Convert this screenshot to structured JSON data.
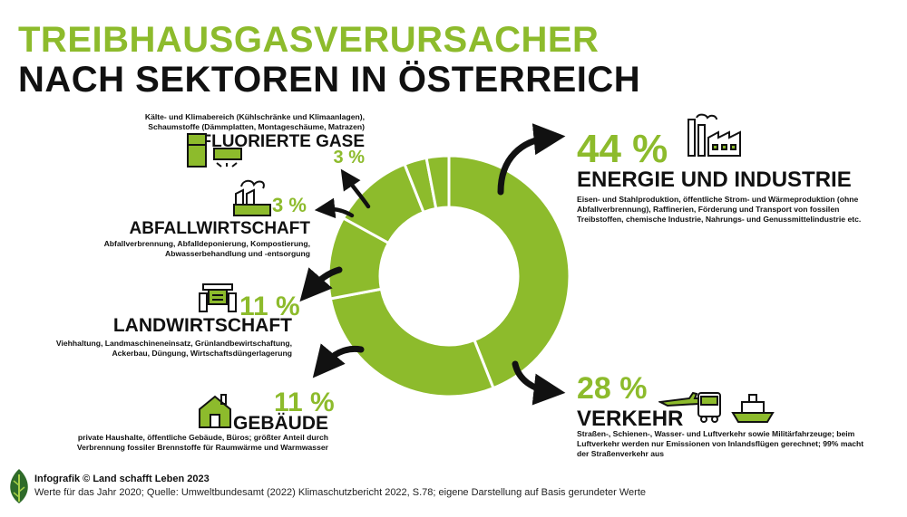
{
  "title_line1": "TREIBHAUSGASVERURSACHER",
  "title_line2": "NACH SEKTOREN IN ÖSTERREICH",
  "colors": {
    "accent": "#8dbb2c",
    "text": "#111111"
  },
  "sectors": {
    "energie": {
      "percent": "44 %",
      "name": "ENERGIE UND INDUSTRIE",
      "desc": "Eisen- und Stahlproduktion, öffentliche Strom- und Wärmeproduktion (ohne Abfallverbrennung), Raffinerien, Förderung und Transport von fossilen Treibstoffen, chemische Industrie, Nahrungs- und Genussmittelindustrie etc.",
      "icon": "factory-icon"
    },
    "verkehr": {
      "percent": "28 %",
      "name": "VERKEHR",
      "desc": "Straßen-, Schienen-, Wasser- und Luftverkehr sowie Militärfahrzeuge; beim Luftverkehr werden nur Emissionen von Inlandsflügen gerechnet; 99% macht der Straßenverkehr aus",
      "icon": "transport-icons"
    },
    "gebaeude": {
      "percent": "11 %",
      "name": "GEBÄUDE",
      "desc": "private Haushalte, öffentliche Gebäude, Büros; größter Anteil durch Verbrennung fossiler Brennstoffe für Raumwärme und Warmwasser",
      "icon": "house-icon"
    },
    "landwirtschaft": {
      "percent": "11 %",
      "name": "LANDWIRTSCHAFT",
      "desc": "Viehhaltung, Landmaschineneinsatz, Grünlandbewirtschaftung, Ackerbau, Düngung, Wirtschaftsdüngerlagerung",
      "icon": "tractor-icon"
    },
    "abfall": {
      "percent": "3 %",
      "name": "ABFALLWIRTSCHAFT",
      "desc": "Abfallverbrennung, Abfalldeponierung, Kompostierung, Abwasserbehandlung und -entsorgung",
      "icon": "waste-plant-icon"
    },
    "gase": {
      "percent": "3 %",
      "name": "FLUORIERTE GASE",
      "desc": "Kälte- und Klimabereich (Kühlschränke und Klimaanlagen), Schaumstoffe (Dämmplatten, Montageschäume, Matrazen)",
      "icon": "fridge-ac-icon"
    }
  },
  "chart_data": {
    "type": "pie",
    "variant": "donut",
    "categories": [
      "Energie und Industrie",
      "Verkehr",
      "Gebäude",
      "Landwirtschaft",
      "Abfallwirtschaft",
      "Fluorierte Gase"
    ],
    "values": [
      44,
      28,
      11,
      11,
      3,
      3
    ],
    "unit": "%"
  },
  "footer": {
    "line1": "Infografik © Land schafft Leben 2023",
    "line2": "Werte für das Jahr 2020; Quelle: Umweltbundesamt (2022) Klimaschutzbericht 2022, S.78; eigene Darstellung auf Basis gerundeter Werte"
  }
}
